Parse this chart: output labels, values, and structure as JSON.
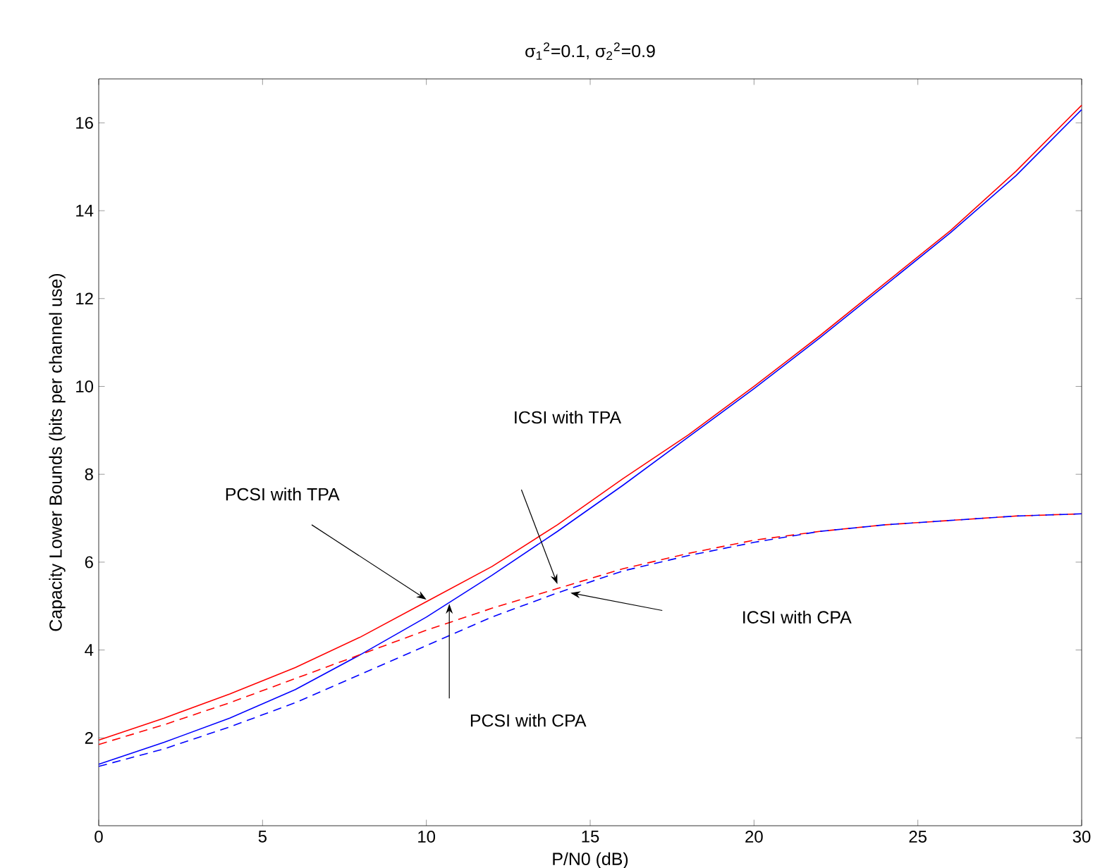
{
  "chart_data": {
    "type": "line",
    "title": "σ$_{1}$$^{2}$=0.1, σ$_{2}$$^{2}$=0.9",
    "xlabel": "P/N0 (dB)",
    "ylabel": "Capacity Lower Bounds (bits per channel use)",
    "x": [
      0,
      2,
      4,
      6,
      8,
      10,
      12,
      14,
      16,
      18,
      20,
      22,
      24,
      26,
      28,
      30
    ],
    "series": [
      {
        "color": "#ff0000",
        "line_style": "solid",
        "values": [
          1.95,
          2.45,
          3.0,
          3.6,
          4.3,
          5.1,
          5.9,
          6.85,
          7.9,
          8.9,
          10.0,
          11.15,
          12.35,
          13.55,
          14.9,
          16.4
        ]
      },
      {
        "color": "#0000ff",
        "line_style": "solid",
        "values": [
          1.4,
          1.9,
          2.45,
          3.1,
          3.9,
          4.75,
          5.7,
          6.7,
          7.75,
          8.85,
          9.95,
          11.1,
          12.3,
          13.5,
          14.8,
          16.3
        ]
      },
      {
        "color": "#ff0000",
        "line_style": "dashed",
        "values": [
          1.85,
          2.3,
          2.8,
          3.35,
          3.9,
          4.45,
          4.95,
          5.4,
          5.85,
          6.2,
          6.5,
          6.7,
          6.85,
          6.95,
          7.05,
          7.1
        ]
      },
      {
        "color": "#0000ff",
        "line_style": "dashed",
        "values": [
          1.35,
          1.75,
          2.25,
          2.8,
          3.45,
          4.1,
          4.75,
          5.3,
          5.8,
          6.15,
          6.45,
          6.7,
          6.85,
          6.95,
          7.05,
          7.1
        ]
      }
    ],
    "xlim": [
      0,
      30
    ],
    "ylim": [
      0,
      17
    ],
    "xticks": [
      0,
      5,
      10,
      15,
      20,
      25,
      30
    ],
    "yticks": [
      2,
      4,
      6,
      8,
      10,
      12,
      14,
      16
    ],
    "grid": false,
    "annotations": [
      "PCSI with TPA",
      "ICSI with TPA",
      "ICSI with CPA",
      "PCSI with CPA"
    ]
  }
}
